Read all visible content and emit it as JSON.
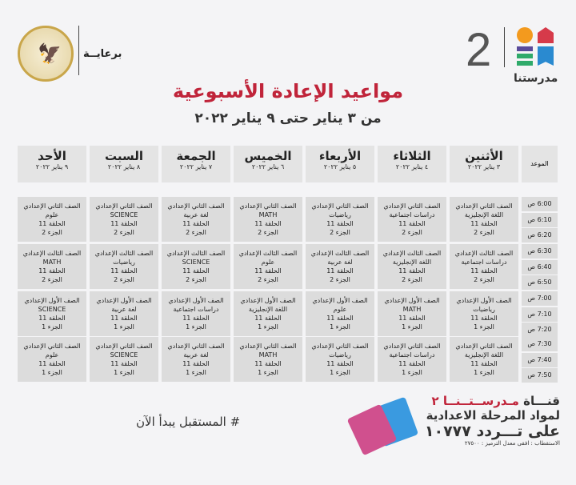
{
  "header": {
    "sponsor_label": "برعايــة",
    "seal_text": "وزارة التربية والتعليم والتعليم الفني",
    "channel_number": "2",
    "logo_text": "مدرستنا",
    "title": "مواعيد الإعادة الأسبوعية",
    "subtitle": "من ٣ يناير حتى ٩ يناير ٢٠٢٢"
  },
  "table": {
    "time_header": "الموعد",
    "days": [
      {
        "name": "الأثنين",
        "date": "٣ يناير ٢٠٢٢"
      },
      {
        "name": "الثلاثاء",
        "date": "٤ يناير ٢٠٢٢"
      },
      {
        "name": "الأربعاء",
        "date": "٥ يناير ٢٠٢٢"
      },
      {
        "name": "الخميس",
        "date": "٦ يناير ٢٠٢٢"
      },
      {
        "name": "الجمعة",
        "date": "٧ يناير ٢٠٢٢"
      },
      {
        "name": "السبت",
        "date": "٨ يناير ٢٠٢٢"
      },
      {
        "name": "الأحد",
        "date": "٩ يناير ٢٠٢٢"
      }
    ],
    "blocks": [
      {
        "times": [
          "6:00 ص",
          "6:10 ص",
          "6:20 ص"
        ],
        "grade": "الصف الثاني الإعدادي",
        "episode": "الحلقة 11",
        "part": "الجزء 2",
        "subjects": [
          "اللغة الإنجليزية",
          "دراسات اجتماعية",
          "رياضيات",
          "MATH",
          "لغة عربية",
          "SCIENCE",
          "علوم"
        ]
      },
      {
        "times": [
          "6:30 ص",
          "6:40 ص",
          "6:50 ص"
        ],
        "grade": "الصف الثالث الإعدادي",
        "episode": "الحلقة 11",
        "part": "الجزء 2",
        "subjects": [
          "دراسات اجتماعية",
          "اللغة الإنجليزية",
          "لغة عربية",
          "علوم",
          "SCIENCE",
          "رياضيات",
          "MATH"
        ]
      },
      {
        "times": [
          "7:00 ص",
          "7:10 ص",
          "7:20 ص"
        ],
        "grade": "الصف الأول الإعدادي",
        "episode": "الحلقة 11",
        "part": "الجزء 1",
        "subjects": [
          "رياضيات",
          "MATH",
          "علوم",
          "اللغة الإنجليزية",
          "دراسات اجتماعية",
          "لغة عربية",
          "SCIENCE"
        ]
      },
      {
        "times": [
          "7:30 ص",
          "7:40 ص",
          "7:50 ص"
        ],
        "grade": "الصف الثاني الإعدادي",
        "episode": "الحلقة 11",
        "part": "الجزء 1",
        "subjects": [
          "اللغة الإنجليزية",
          "دراسات اجتماعية",
          "رياضيات",
          "MATH",
          "لغة عربية",
          "SCIENCE",
          "علوم"
        ]
      }
    ]
  },
  "footer": {
    "hashtag": "# المستقبل يبدأ الآن",
    "channel_prefix": "قنـــاة",
    "channel_name": "مـدرســتــنــا ٢",
    "line2": "لمواد المرحلة الاعدادية",
    "line3": "على تـــردد ١٠٧٧٧",
    "line4": "الاستقطاب : افقى معدل الترميز : ٢٧٥٠٠"
  },
  "colors": {
    "title": "#c0243a",
    "cell": "#dcdcdc"
  }
}
